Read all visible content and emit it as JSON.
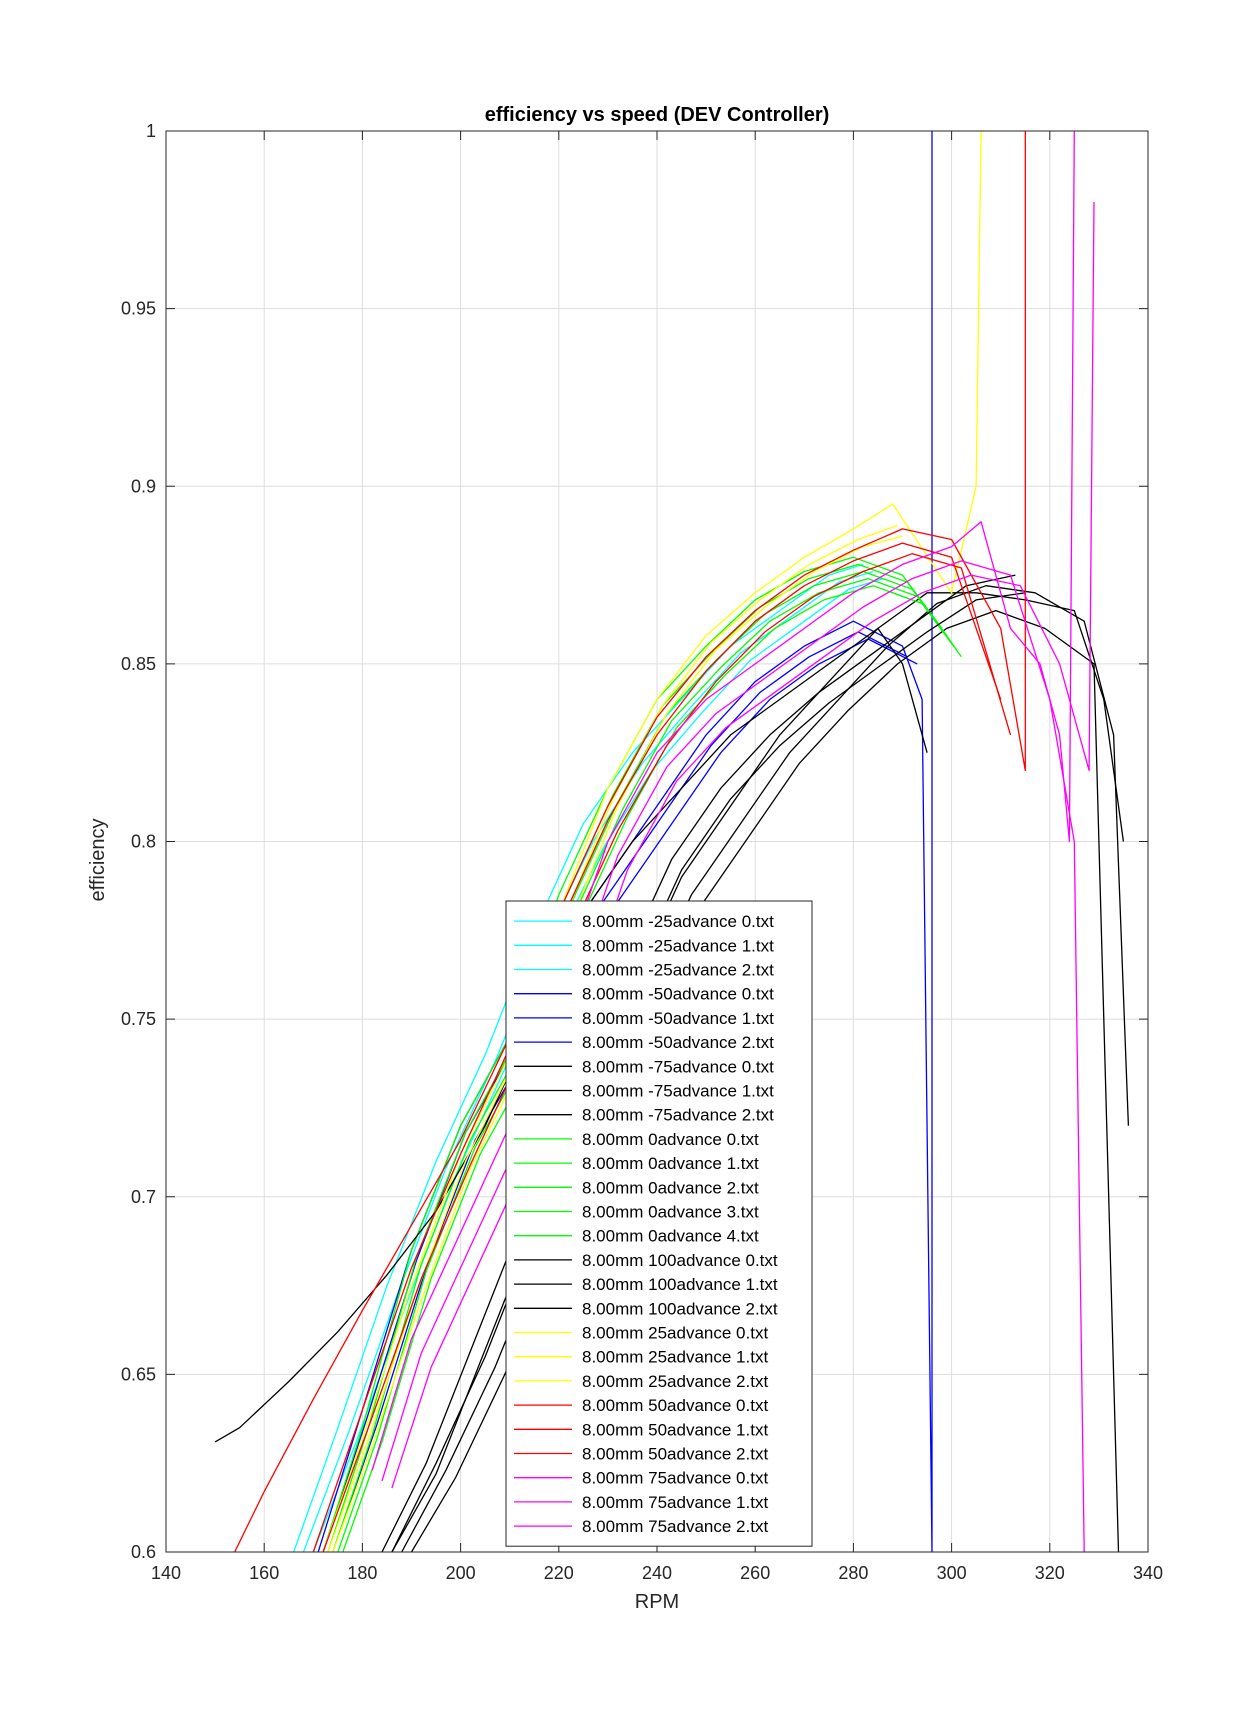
{
  "chart_data": {
    "type": "line",
    "title": "efficiency vs speed (DEV Controller)",
    "xlabel": "RPM",
    "ylabel": "efficiency",
    "xlim": [
      140,
      340
    ],
    "ylim": [
      0.6,
      1
    ],
    "xticks": [
      140,
      160,
      180,
      200,
      220,
      240,
      260,
      280,
      300,
      320,
      340
    ],
    "yticks": [
      0.6,
      0.65,
      0.7,
      0.75,
      0.8,
      0.85,
      0.9,
      0.95,
      1
    ],
    "ytick_labels": [
      "0.6",
      "0.65",
      "0.7",
      "0.75",
      "0.8",
      "0.85",
      "0.9",
      "0.95",
      "1"
    ],
    "grid": true,
    "legend_position": "bottom-center",
    "series": [
      {
        "name": "8.00mm -25advance 0.txt",
        "color": "#00ffff",
        "x": [
          166,
          175,
          185,
          195,
          205,
          215,
          225,
          235,
          245,
          255,
          265,
          275,
          282
        ],
        "y": [
          0.6,
          0.635,
          0.675,
          0.71,
          0.74,
          0.775,
          0.805,
          0.825,
          0.84,
          0.855,
          0.865,
          0.875,
          0.878
        ]
      },
      {
        "name": "8.00mm -25advance 1.txt",
        "color": "#00ffff",
        "x": [
          168,
          177,
          187,
          197,
          207,
          217,
          227,
          237,
          247,
          257,
          267,
          277,
          284
        ],
        "y": [
          0.6,
          0.633,
          0.672,
          0.708,
          0.738,
          0.772,
          0.8,
          0.822,
          0.838,
          0.853,
          0.863,
          0.873,
          0.876
        ]
      },
      {
        "name": "8.00mm -25advance 2.txt",
        "color": "#00ffff",
        "x": [
          170,
          179,
          189,
          199,
          209,
          219,
          229,
          239,
          249,
          259,
          269,
          279,
          286
        ],
        "y": [
          0.6,
          0.632,
          0.67,
          0.706,
          0.736,
          0.77,
          0.798,
          0.82,
          0.836,
          0.851,
          0.861,
          0.871,
          0.874
        ]
      },
      {
        "name": "8.00mm -50advance 0.txt",
        "color": "#0000ff",
        "x": [
          171,
          180,
          190,
          200,
          210,
          220,
          230,
          240,
          250,
          260,
          270,
          280,
          290,
          294,
          296,
          296
        ],
        "y": [
          0.6,
          0.64,
          0.685,
          0.72,
          0.745,
          0.77,
          0.79,
          0.81,
          0.83,
          0.845,
          0.855,
          0.862,
          0.855,
          0.84,
          0.6,
          1.0
        ]
      },
      {
        "name": "8.00mm -50advance 1.txt",
        "color": "#0000ff",
        "x": [
          172,
          181,
          191,
          201,
          211,
          221,
          231,
          241,
          251,
          261,
          271,
          281,
          291
        ],
        "y": [
          0.6,
          0.638,
          0.682,
          0.718,
          0.742,
          0.767,
          0.787,
          0.807,
          0.827,
          0.842,
          0.852,
          0.859,
          0.852
        ]
      },
      {
        "name": "8.00mm -50advance 2.txt",
        "color": "#0000ff",
        "x": [
          174,
          183,
          193,
          203,
          213,
          223,
          233,
          243,
          253,
          263,
          273,
          283,
          293
        ],
        "y": [
          0.6,
          0.636,
          0.68,
          0.716,
          0.74,
          0.765,
          0.785,
          0.805,
          0.825,
          0.84,
          0.85,
          0.857,
          0.85
        ]
      },
      {
        "name": "8.00mm -75advance 0.txt",
        "color": "#000000",
        "x": [
          186,
          195,
          205,
          215,
          225,
          235,
          245,
          255,
          265,
          275,
          285,
          295,
          305,
          315,
          325,
          331,
          335
        ],
        "y": [
          0.6,
          0.625,
          0.655,
          0.69,
          0.725,
          0.76,
          0.79,
          0.81,
          0.83,
          0.845,
          0.86,
          0.87,
          0.87,
          0.868,
          0.865,
          0.84,
          0.8
        ]
      },
      {
        "name": "8.00mm -75advance 1.txt",
        "color": "#000000",
        "x": [
          188,
          197,
          207,
          217,
          227,
          237,
          247,
          257,
          267,
          277,
          287,
          297,
          307,
          317,
          327,
          333,
          336
        ],
        "y": [
          0.6,
          0.623,
          0.652,
          0.686,
          0.72,
          0.755,
          0.785,
          0.805,
          0.825,
          0.84,
          0.855,
          0.867,
          0.872,
          0.87,
          0.862,
          0.83,
          0.72
        ]
      },
      {
        "name": "8.00mm -75advance 2.txt",
        "color": "#000000",
        "x": [
          190,
          199,
          209,
          219,
          229,
          239,
          249,
          259,
          269,
          279,
          289,
          299,
          309,
          319,
          329,
          334
        ],
        "y": [
          0.6,
          0.621,
          0.65,
          0.683,
          0.717,
          0.752,
          0.782,
          0.802,
          0.822,
          0.837,
          0.85,
          0.86,
          0.865,
          0.86,
          0.85,
          0.6
        ]
      },
      {
        "name": "8.00mm 0advance 0.txt",
        "color": "#00ff00",
        "x": [
          172,
          180,
          190,
          200,
          210,
          220,
          230,
          240,
          250,
          260,
          270,
          280,
          290,
          298
        ],
        "y": [
          0.6,
          0.635,
          0.685,
          0.72,
          0.745,
          0.785,
          0.815,
          0.84,
          0.855,
          0.868,
          0.876,
          0.88,
          0.875,
          0.86
        ]
      },
      {
        "name": "8.00mm 0advance 1.txt",
        "color": "#00ff00",
        "x": [
          173,
          181,
          191,
          201,
          211,
          221,
          231,
          241,
          251,
          261,
          271,
          281,
          291,
          299
        ],
        "y": [
          0.6,
          0.634,
          0.683,
          0.718,
          0.743,
          0.783,
          0.813,
          0.838,
          0.853,
          0.866,
          0.874,
          0.878,
          0.873,
          0.858
        ]
      },
      {
        "name": "8.00mm 0advance 2.txt",
        "color": "#00ff00",
        "x": [
          174,
          182,
          192,
          202,
          212,
          222,
          232,
          242,
          252,
          262,
          272,
          282,
          292,
          300
        ],
        "y": [
          0.6,
          0.633,
          0.681,
          0.716,
          0.741,
          0.781,
          0.811,
          0.836,
          0.851,
          0.864,
          0.872,
          0.876,
          0.871,
          0.856
        ]
      },
      {
        "name": "8.00mm 0advance 3.txt",
        "color": "#00ff00",
        "x": [
          175,
          183,
          193,
          203,
          213,
          223,
          233,
          243,
          253,
          263,
          273,
          283,
          293,
          301
        ],
        "y": [
          0.6,
          0.632,
          0.679,
          0.714,
          0.739,
          0.779,
          0.809,
          0.834,
          0.849,
          0.862,
          0.87,
          0.874,
          0.869,
          0.854
        ]
      },
      {
        "name": "8.00mm 0advance 4.txt",
        "color": "#00ff00",
        "x": [
          176,
          184,
          194,
          204,
          214,
          224,
          234,
          244,
          254,
          264,
          274,
          284,
          294,
          302
        ],
        "y": [
          0.6,
          0.631,
          0.677,
          0.712,
          0.737,
          0.777,
          0.807,
          0.832,
          0.847,
          0.86,
          0.868,
          0.872,
          0.867,
          0.852
        ]
      },
      {
        "name": "8.00mm 100advance 0.txt",
        "color": "#000000",
        "x": [
          150,
          155,
          165,
          175,
          185,
          195,
          205,
          215,
          225,
          235,
          245,
          255,
          265,
          275,
          285,
          290,
          295
        ],
        "y": [
          0.631,
          0.635,
          0.648,
          0.662,
          0.678,
          0.696,
          0.72,
          0.75,
          0.78,
          0.8,
          0.815,
          0.83,
          0.84,
          0.85,
          0.86,
          0.85,
          0.825
        ]
      },
      {
        "name": "8.00mm 100advance 1.txt",
        "color": "#000000",
        "x": [
          184,
          193,
          203,
          213,
          223,
          233,
          243,
          253,
          263,
          273,
          283,
          293,
          303,
          313
        ],
        "y": [
          0.6,
          0.625,
          0.66,
          0.695,
          0.73,
          0.765,
          0.795,
          0.815,
          0.83,
          0.842,
          0.852,
          0.862,
          0.872,
          0.875
        ]
      },
      {
        "name": "8.00mm 100advance 2.txt",
        "color": "#000000",
        "x": [
          186,
          195,
          205,
          215,
          225,
          235,
          245,
          255,
          265,
          275,
          285,
          295,
          305,
          315
        ],
        "y": [
          0.6,
          0.622,
          0.657,
          0.692,
          0.727,
          0.762,
          0.792,
          0.812,
          0.827,
          0.839,
          0.849,
          0.859,
          0.868,
          0.87
        ]
      },
      {
        "name": "8.00mm 25advance 0.txt",
        "color": "#ffff00",
        "x": [
          172,
          180,
          190,
          200,
          210,
          220,
          230,
          240,
          250,
          260,
          270,
          280,
          288,
          300,
          305,
          306
        ],
        "y": [
          0.6,
          0.632,
          0.675,
          0.712,
          0.74,
          0.78,
          0.815,
          0.84,
          0.858,
          0.87,
          0.88,
          0.888,
          0.895,
          0.87,
          0.9,
          1.0
        ]
      },
      {
        "name": "8.00mm 25advance 1.txt",
        "color": "#ffff00",
        "x": [
          173,
          181,
          191,
          201,
          211,
          221,
          231,
          241,
          251,
          261,
          271,
          281,
          289
        ],
        "y": [
          0.6,
          0.631,
          0.673,
          0.71,
          0.738,
          0.778,
          0.812,
          0.838,
          0.856,
          0.868,
          0.878,
          0.885,
          0.889
        ]
      },
      {
        "name": "8.00mm 25advance 2.txt",
        "color": "#ffff00",
        "x": [
          174,
          182,
          192,
          202,
          212,
          222,
          232,
          242,
          252,
          262,
          272,
          282,
          290
        ],
        "y": [
          0.6,
          0.63,
          0.671,
          0.708,
          0.736,
          0.776,
          0.81,
          0.836,
          0.854,
          0.866,
          0.876,
          0.883,
          0.886
        ]
      },
      {
        "name": "8.00mm 50advance 0.txt",
        "color": "#ff0000",
        "x": [
          154,
          160,
          170,
          180,
          190,
          200,
          210,
          220,
          230,
          240,
          250,
          260,
          270,
          280,
          290,
          300,
          310,
          315,
          315
        ],
        "y": [
          0.6,
          0.617,
          0.643,
          0.668,
          0.692,
          0.716,
          0.745,
          0.78,
          0.81,
          0.835,
          0.852,
          0.865,
          0.875,
          0.882,
          0.888,
          0.885,
          0.86,
          0.82,
          1.0
        ]
      },
      {
        "name": "8.00mm 50advance 1.txt",
        "color": "#ff0000",
        "x": [
          170,
          180,
          190,
          200,
          210,
          220,
          230,
          240,
          250,
          260,
          270,
          280,
          290,
          300,
          310
        ],
        "y": [
          0.6,
          0.64,
          0.68,
          0.712,
          0.742,
          0.776,
          0.806,
          0.83,
          0.848,
          0.862,
          0.872,
          0.879,
          0.884,
          0.88,
          0.84
        ]
      },
      {
        "name": "8.00mm 50advance 2.txt",
        "color": "#ff0000",
        "x": [
          172,
          182,
          192,
          202,
          212,
          222,
          232,
          242,
          252,
          262,
          272,
          282,
          292,
          302,
          312
        ],
        "y": [
          0.6,
          0.638,
          0.677,
          0.709,
          0.739,
          0.773,
          0.803,
          0.827,
          0.845,
          0.859,
          0.869,
          0.876,
          0.881,
          0.877,
          0.83
        ]
      },
      {
        "name": "8.00mm 75advance 0.txt",
        "color": "#ff00ff",
        "x": [
          182,
          190,
          200,
          210,
          220,
          230,
          240,
          250,
          260,
          270,
          280,
          290,
          300,
          306,
          312,
          318,
          322,
          324,
          325
        ],
        "y": [
          0.623,
          0.66,
          0.69,
          0.72,
          0.76,
          0.8,
          0.825,
          0.84,
          0.85,
          0.86,
          0.87,
          0.878,
          0.883,
          0.89,
          0.86,
          0.85,
          0.83,
          0.8,
          1.0
        ]
      },
      {
        "name": "8.00mm 75advance 1.txt",
        "color": "#ff00ff",
        "x": [
          184,
          192,
          202,
          212,
          222,
          232,
          242,
          252,
          262,
          272,
          282,
          292,
          302,
          312,
          320,
          325,
          327
        ],
        "y": [
          0.62,
          0.656,
          0.686,
          0.716,
          0.756,
          0.796,
          0.821,
          0.836,
          0.846,
          0.856,
          0.866,
          0.874,
          0.879,
          0.875,
          0.84,
          0.8,
          0.6
        ]
      },
      {
        "name": "8.00mm 75advance 2.txt",
        "color": "#ff00ff",
        "x": [
          186,
          194,
          204,
          214,
          224,
          234,
          244,
          254,
          264,
          274,
          284,
          294,
          304,
          314,
          322,
          328,
          329
        ],
        "y": [
          0.618,
          0.652,
          0.682,
          0.712,
          0.752,
          0.792,
          0.817,
          0.832,
          0.842,
          0.852,
          0.862,
          0.87,
          0.875,
          0.872,
          0.85,
          0.82,
          0.98
        ]
      }
    ]
  }
}
